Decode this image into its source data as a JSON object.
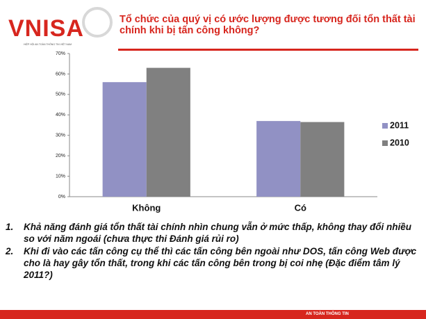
{
  "header": {
    "logo": "VNISA",
    "logo_subtitle": "HIỆP HỘI AN TOÀN THÔNG TIN VIỆT NAM"
  },
  "chart_data": {
    "type": "bar",
    "title": "Tổ chức của quý vị có ước lượng được tương đối tổn thất tài chính khi bị tấn công không?",
    "categories": [
      "Không",
      "Có"
    ],
    "series": [
      {
        "name": "2011",
        "color": "#9191c4",
        "values": [
          56,
          37
        ]
      },
      {
        "name": "2010",
        "color": "#808080",
        "values": [
          63,
          36.5
        ]
      }
    ],
    "ylim": [
      0,
      70
    ],
    "yticks": [
      {
        "value": 0,
        "label": "0%"
      },
      {
        "value": 10,
        "label": "10%"
      },
      {
        "value": 20,
        "label": "20%"
      },
      {
        "value": 30,
        "label": "30%"
      },
      {
        "value": 40,
        "label": "40%"
      },
      {
        "value": 50,
        "label": "50%"
      },
      {
        "value": 60,
        "label": "60%"
      },
      {
        "value": 70,
        "label": "70%"
      }
    ],
    "grid": false,
    "legend": "right"
  },
  "notes": [
    {
      "number": "1.",
      "text": "Khả năng đánh giá tổn thất tài chính nhìn chung vẫn ở mức thấp, không thay đổi nhiều so với năm ngoái (chưa thực thi Đánh giá rủi ro)"
    },
    {
      "number": "2.",
      "text": "Khi đi vào các tấn công cụ thể thì các tấn công bên ngoài như DOS, tấn công Web được cho là hay gây tổn thất, trong khi các tấn công bên trong bị coi nhẹ (Đặc điểm tâm lý 2011?)"
    }
  ],
  "footer": {
    "text": "AN TOÀN THÔNG TIN"
  }
}
